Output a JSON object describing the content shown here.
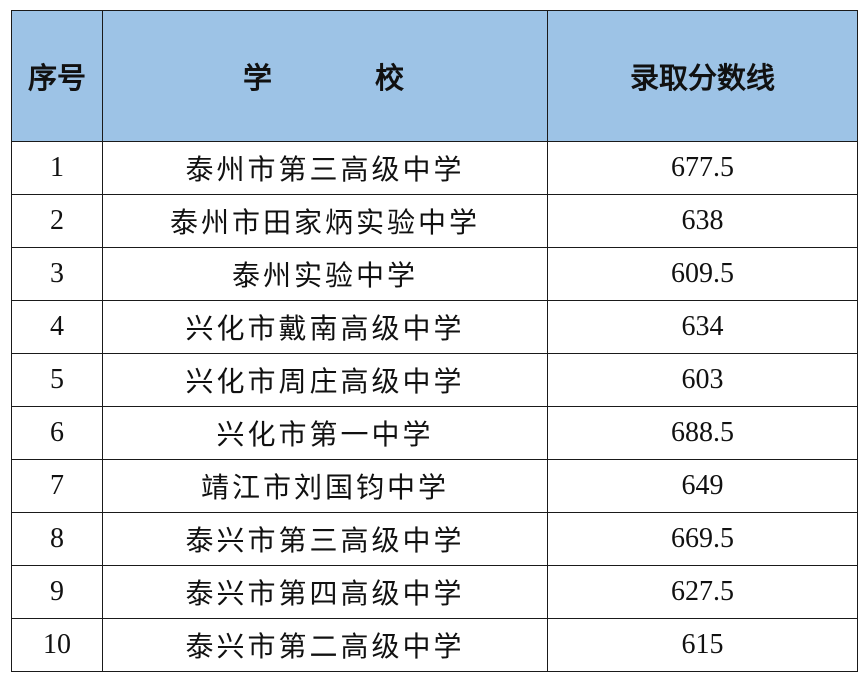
{
  "table": {
    "headers": {
      "index": "序号",
      "school_a": "学",
      "school_b": "校",
      "score": "录取分数线"
    },
    "header_bg": "#9dc3e6",
    "rows": [
      {
        "index": "1",
        "school": "泰州市第三高级中学",
        "score": "677.5"
      },
      {
        "index": "2",
        "school": "泰州市田家炳实验中学",
        "score": "638"
      },
      {
        "index": "3",
        "school": "泰州实验中学",
        "score": "609.5"
      },
      {
        "index": "4",
        "school": "兴化市戴南高级中学",
        "score": "634"
      },
      {
        "index": "5",
        "school": "兴化市周庄高级中学",
        "score": "603"
      },
      {
        "index": "6",
        "school": "兴化市第一中学",
        "score": "688.5"
      },
      {
        "index": "7",
        "school": "靖江市刘国钧中学",
        "score": "649"
      },
      {
        "index": "8",
        "school": "泰兴市第三高级中学",
        "score": "669.5"
      },
      {
        "index": "9",
        "school": "泰兴市第四高级中学",
        "score": "627.5"
      },
      {
        "index": "10",
        "school": "泰兴市第二高级中学",
        "score": "615"
      }
    ]
  }
}
